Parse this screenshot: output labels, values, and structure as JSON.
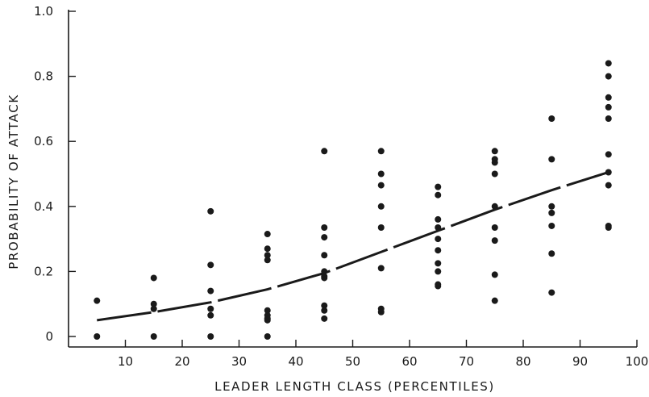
{
  "chart_data": {
    "type": "scatter",
    "title": "",
    "xlabel": "LEADER LENGTH CLASS (PERCENTILES)",
    "ylabel": "PROBABILITY OF ATTACK",
    "xlim": [
      0,
      100
    ],
    "ylim": [
      0,
      1.0
    ],
    "x_ticks": [
      10,
      20,
      30,
      40,
      50,
      60,
      70,
      80,
      90,
      100
    ],
    "x_tick_labels": [
      "10",
      "20",
      "30",
      "40",
      "50",
      "60",
      "70",
      "80",
      "90",
      "100"
    ],
    "y_ticks": [
      0,
      0.2,
      0.4,
      0.6,
      0.8,
      1.0
    ],
    "y_tick_labels": [
      "0",
      "0.2",
      "0.4",
      "0.6",
      "0.8",
      "1.0"
    ],
    "grid": false,
    "legend": "none",
    "series": [
      {
        "kind": "points",
        "x": [
          5,
          5,
          15,
          15,
          15,
          15,
          25,
          25,
          25,
          25,
          25,
          25,
          35,
          35,
          35,
          35,
          35,
          35,
          35,
          35,
          35,
          45,
          45,
          45,
          45,
          45,
          45,
          45,
          45,
          45,
          45,
          55,
          55,
          55,
          55,
          55,
          55,
          55,
          55,
          65,
          65,
          65,
          65,
          65,
          65,
          65,
          65,
          65,
          65,
          75,
          75,
          75,
          75,
          75,
          75,
          75,
          75,
          75,
          85,
          85,
          85,
          85,
          85,
          85,
          85,
          95,
          95,
          95,
          95,
          95,
          95,
          95,
          95,
          95,
          95
        ],
        "y": [
          0.11,
          0.0,
          0.18,
          0.1,
          0.085,
          0.0,
          0.385,
          0.22,
          0.14,
          0.085,
          0.065,
          0.0,
          0.315,
          0.27,
          0.25,
          0.235,
          0.08,
          0.065,
          0.055,
          0.05,
          0.0,
          0.57,
          0.335,
          0.305,
          0.25,
          0.2,
          0.185,
          0.18,
          0.095,
          0.08,
          0.055,
          0.57,
          0.5,
          0.465,
          0.4,
          0.335,
          0.21,
          0.085,
          0.075,
          0.46,
          0.435,
          0.36,
          0.335,
          0.3,
          0.265,
          0.225,
          0.2,
          0.16,
          0.155,
          0.57,
          0.545,
          0.535,
          0.5,
          0.4,
          0.335,
          0.295,
          0.19,
          0.11,
          0.67,
          0.545,
          0.4,
          0.38,
          0.34,
          0.255,
          0.135,
          0.84,
          0.8,
          0.735,
          0.705,
          0.67,
          0.56,
          0.505,
          0.465,
          0.34,
          0.335
        ]
      },
      {
        "kind": "fitted-curve",
        "x": [
          5,
          15,
          25,
          35,
          45,
          55,
          65,
          75,
          85,
          95
        ],
        "y": [
          0.05,
          0.075,
          0.105,
          0.145,
          0.195,
          0.26,
          0.325,
          0.39,
          0.45,
          0.505
        ]
      }
    ]
  }
}
